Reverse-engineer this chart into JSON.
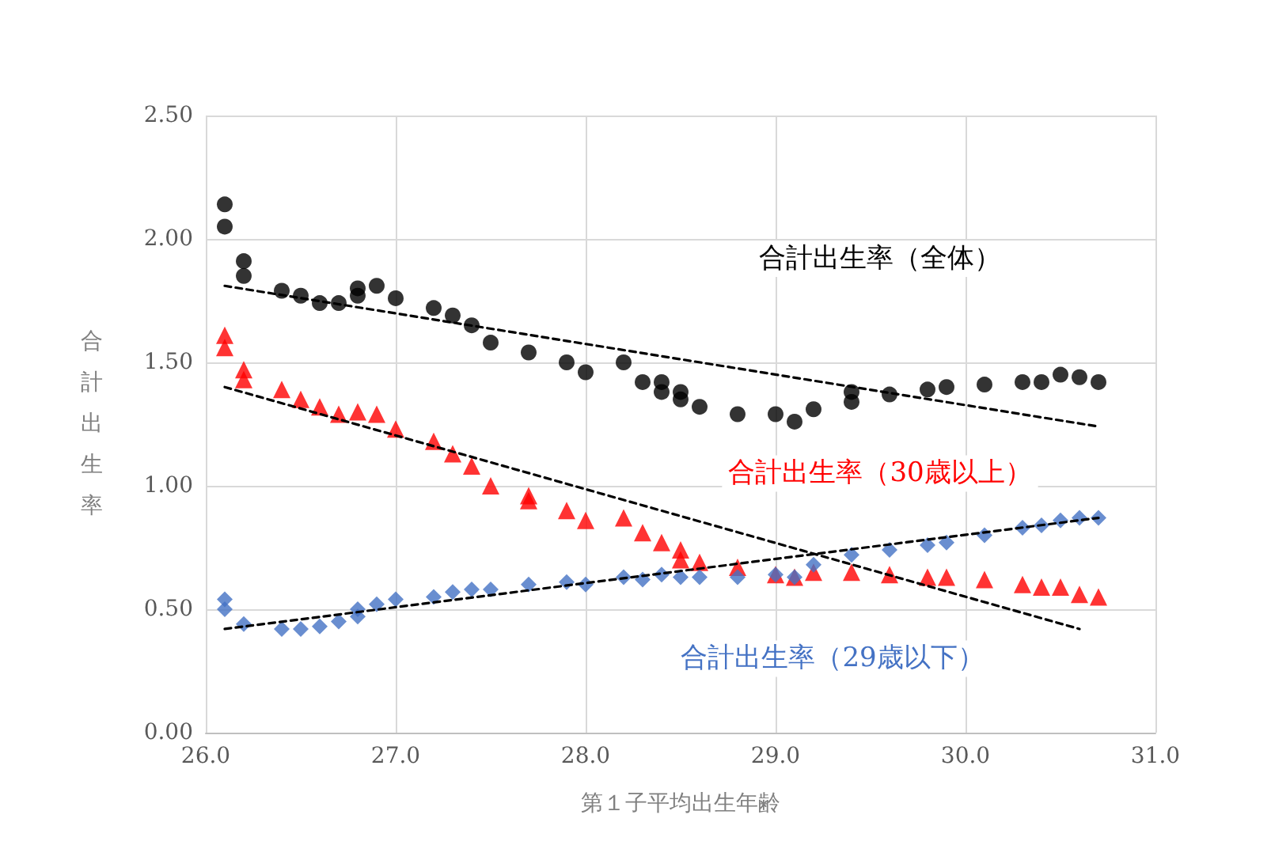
{
  "chart_data": {
    "type": "scatter",
    "xlabel": "第１子平均出生年齢",
    "ylabel": "合計出生率",
    "xlim": [
      26,
      31
    ],
    "ylim": [
      0,
      2.5
    ],
    "xticks": [
      {
        "value": 26,
        "label": "26.0"
      },
      {
        "value": 27,
        "label": "27.0"
      },
      {
        "value": 28,
        "label": "28.0"
      },
      {
        "value": 29,
        "label": "29.0"
      },
      {
        "value": 30,
        "label": "30.0"
      },
      {
        "value": 31,
        "label": "31.0"
      }
    ],
    "yticks": [
      {
        "value": 0,
        "label": "0.00"
      },
      {
        "value": 0.5,
        "label": "0.50"
      },
      {
        "value": 1,
        "label": "1.00"
      },
      {
        "value": 1.5,
        "label": "1.50"
      },
      {
        "value": 2,
        "label": "2.00"
      },
      {
        "value": 2.5,
        "label": "2.50"
      }
    ],
    "grid": true,
    "legend": false,
    "series": [
      {
        "name": "合計出生率（全体）",
        "color": "#000000",
        "marker": "circle",
        "x": [
          26.1,
          26.1,
          26.2,
          26.2,
          26.4,
          26.5,
          26.6,
          26.7,
          26.8,
          26.8,
          26.9,
          27.0,
          27.2,
          27.3,
          27.4,
          27.5,
          27.7,
          27.9,
          28.0,
          28.2,
          28.3,
          28.4,
          28.4,
          28.5,
          28.5,
          28.6,
          28.8,
          29.0,
          29.1,
          29.2,
          29.4,
          29.4,
          29.6,
          29.8,
          29.9,
          30.1,
          30.3,
          30.4,
          30.5,
          30.6,
          30.7
        ],
        "values": [
          2.14,
          2.05,
          1.91,
          1.85,
          1.79,
          1.77,
          1.74,
          1.74,
          1.77,
          1.8,
          1.81,
          1.76,
          1.72,
          1.69,
          1.65,
          1.58,
          1.54,
          1.5,
          1.46,
          1.5,
          1.42,
          1.42,
          1.38,
          1.38,
          1.35,
          1.32,
          1.29,
          1.29,
          1.26,
          1.31,
          1.38,
          1.34,
          1.37,
          1.39,
          1.4,
          1.41,
          1.42,
          1.42,
          1.45,
          1.44,
          1.42
        ]
      },
      {
        "name": "合計出生率（30歳以上）",
        "color": "#ff0000",
        "marker": "triangle",
        "x": [
          26.1,
          26.1,
          26.2,
          26.2,
          26.4,
          26.5,
          26.6,
          26.7,
          26.8,
          26.9,
          27.0,
          27.2,
          27.3,
          27.4,
          27.5,
          27.7,
          27.7,
          27.9,
          28.0,
          28.2,
          28.3,
          28.4,
          28.5,
          28.5,
          28.6,
          28.8,
          29.0,
          29.1,
          29.2,
          29.4,
          29.6,
          29.8,
          29.9,
          30.1,
          30.3,
          30.4,
          30.5,
          30.6,
          30.7
        ],
        "values": [
          1.61,
          1.56,
          1.47,
          1.43,
          1.39,
          1.35,
          1.32,
          1.29,
          1.3,
          1.29,
          1.23,
          1.18,
          1.13,
          1.08,
          1.0,
          0.96,
          0.94,
          0.9,
          0.86,
          0.87,
          0.81,
          0.77,
          0.74,
          0.7,
          0.69,
          0.67,
          0.64,
          0.63,
          0.65,
          0.65,
          0.64,
          0.63,
          0.63,
          0.62,
          0.6,
          0.59,
          0.59,
          0.56,
          0.55
        ]
      },
      {
        "name": "合計出生率（29歳以下）",
        "color": "#4472c4",
        "marker": "diamond",
        "x": [
          26.1,
          26.1,
          26.2,
          26.4,
          26.5,
          26.6,
          26.7,
          26.8,
          26.8,
          26.9,
          27.0,
          27.2,
          27.3,
          27.4,
          27.5,
          27.7,
          27.9,
          28.0,
          28.2,
          28.3,
          28.4,
          28.5,
          28.6,
          28.8,
          29.0,
          29.1,
          29.2,
          29.4,
          29.6,
          29.8,
          29.9,
          30.1,
          30.3,
          30.4,
          30.5,
          30.6,
          30.7
        ],
        "values": [
          0.54,
          0.5,
          0.44,
          0.42,
          0.42,
          0.43,
          0.45,
          0.5,
          0.47,
          0.52,
          0.54,
          0.55,
          0.57,
          0.58,
          0.58,
          0.6,
          0.61,
          0.6,
          0.63,
          0.62,
          0.64,
          0.63,
          0.63,
          0.63,
          0.64,
          0.63,
          0.68,
          0.72,
          0.74,
          0.76,
          0.77,
          0.8,
          0.83,
          0.84,
          0.86,
          0.87,
          0.87
        ]
      },
      {
        "type": "line",
        "color": "#000000",
        "marker": "none",
        "line_style": "dashed",
        "x": [
          26.1,
          30.7
        ],
        "values": [
          1.81,
          1.24
        ]
      },
      {
        "type": "line",
        "color": "#000000",
        "marker": "none",
        "line_style": "dashed",
        "x": [
          26.1,
          30.6
        ],
        "values": [
          1.4,
          0.42
        ]
      },
      {
        "type": "line",
        "color": "#000000",
        "marker": "none",
        "line_style": "dashed",
        "x": [
          26.1,
          30.7
        ],
        "values": [
          0.42,
          0.87
        ]
      }
    ]
  }
}
